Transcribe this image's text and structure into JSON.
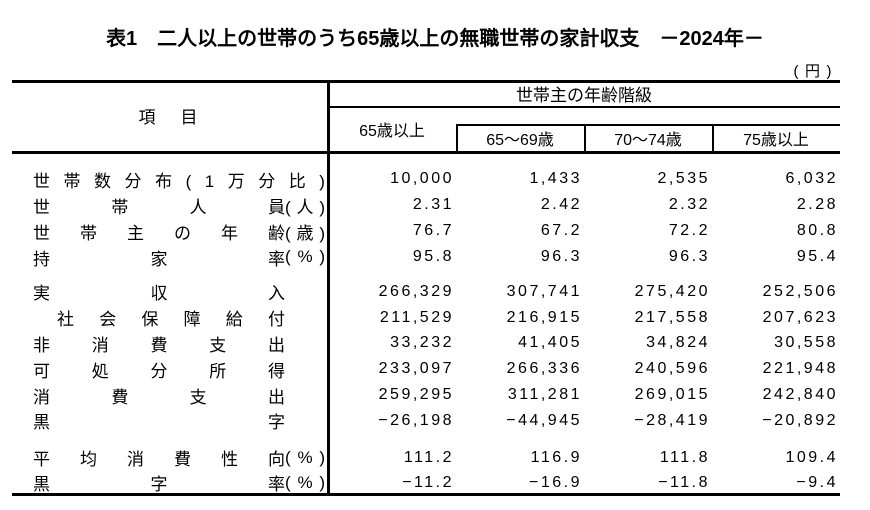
{
  "title": "表1　二人以上の世帯のうち65歳以上の無職世帯の家計収支　－2024年－",
  "unit_note": "(円)",
  "table": {
    "item_header": "項　目",
    "group_header": "世帯主の年齢階級",
    "col_headers": [
      "65歳以上",
      "65～69歳",
      "70～74歳",
      "75歳以上"
    ],
    "groups": [
      {
        "rows": [
          {
            "name": "世帯数分布(1万分比)",
            "unit": "",
            "full": true,
            "values": [
              "10,000",
              "1,433",
              "2,535",
              "6,032"
            ]
          },
          {
            "name": "世帯人員",
            "unit": "(人)",
            "values": [
              "2.31",
              "2.42",
              "2.32",
              "2.28"
            ]
          },
          {
            "name": "世帯主の年齢",
            "unit": "(歳)",
            "values": [
              "76.7",
              "67.2",
              "72.2",
              "80.8"
            ]
          },
          {
            "name": "持家率",
            "unit": "(%)",
            "values": [
              "95.8",
              "96.3",
              "96.3",
              "95.4"
            ]
          }
        ]
      },
      {
        "rows": [
          {
            "name": "実収入",
            "unit": "",
            "values": [
              "266,329",
              "307,741",
              "275,420",
              "252,506"
            ]
          },
          {
            "name": "社会保障給付",
            "unit": "",
            "indent": true,
            "values": [
              "211,529",
              "216,915",
              "217,558",
              "207,623"
            ]
          },
          {
            "name": "非消費支出",
            "unit": "",
            "values": [
              "33,232",
              "41,405",
              "34,824",
              "30,558"
            ]
          },
          {
            "name": "可処分所得",
            "unit": "",
            "values": [
              "233,097",
              "266,336",
              "240,596",
              "221,948"
            ]
          },
          {
            "name": "消費支出",
            "unit": "",
            "values": [
              "259,295",
              "311,281",
              "269,015",
              "242,840"
            ]
          },
          {
            "name": "黒字",
            "unit": "",
            "values": [
              "−26,198",
              "−44,945",
              "−28,419",
              "−20,892"
            ]
          }
        ]
      },
      {
        "rows": [
          {
            "name": "平均消費性向",
            "unit": "(%)",
            "values": [
              "111.2",
              "116.9",
              "111.8",
              "109.4"
            ]
          },
          {
            "name": "黒字率",
            "unit": "(%)",
            "values": [
              "−11.2",
              "−16.9",
              "−11.8",
              "−9.4"
            ]
          }
        ]
      }
    ]
  }
}
